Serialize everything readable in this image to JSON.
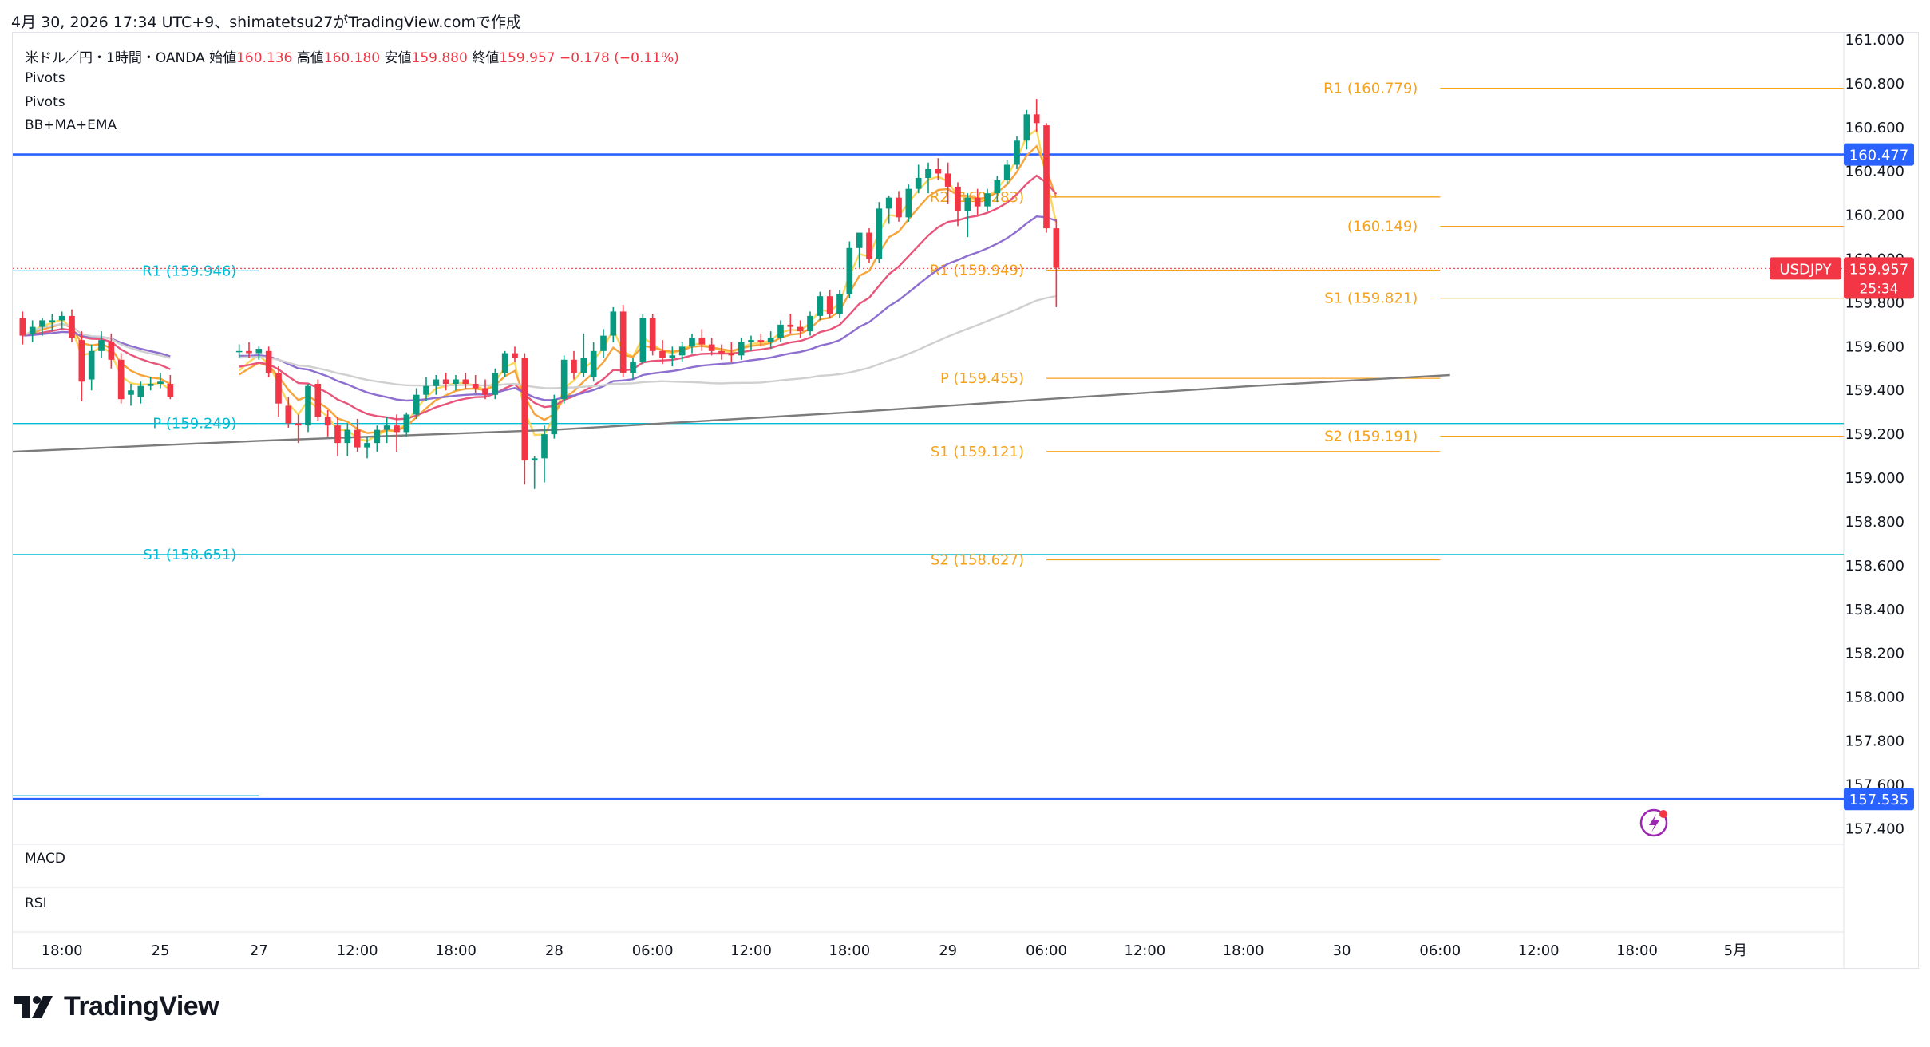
{
  "header": {
    "created_line": "4月 30, 2026 17:34 UTC+9、shimatetsu27がTradingView.comで作成"
  },
  "legend": {
    "symbol": "米ドル／円・1時間・OANDA",
    "open_label": "始値",
    "open": "160.136",
    "high_label": "高値",
    "high": "160.180",
    "low_label": "安値",
    "low": "159.880",
    "close_label": "終値",
    "close": "159.957",
    "change": "−0.178 (−0.11%)",
    "indicators": [
      "Pivots",
      "Pivots",
      "BB+MA+EMA"
    ]
  },
  "panes": {
    "macd": "MACD",
    "rsi": "RSI"
  },
  "brand": {
    "name": "TradingView"
  },
  "colors": {
    "up": "#089981",
    "down": "#f23645",
    "hline": "#2962ff",
    "pivot_cyan": "#00bcd4",
    "pivot_orange": "#f7a21b",
    "ema_yellow": "#fbd75b",
    "ma_orange": "#f7a43b",
    "ma_pink": "#e8557a",
    "ma_purple": "#8e6fcf",
    "ma_lightgray": "#d0d0d0",
    "ma_gray": "#7c7c7c"
  },
  "chart_data": {
    "type": "candlestick",
    "symbol": "USDJPY",
    "last_price": "159.957",
    "countdown": "25:34",
    "y_axis": {
      "ylim": [
        157.35,
        161.0
      ],
      "ticks": [
        "161.000",
        "160.800",
        "160.600",
        "160.400",
        "160.200",
        "160.000",
        "159.800",
        "159.600",
        "159.400",
        "159.200",
        "159.000",
        "158.800",
        "158.600",
        "158.400",
        "158.200",
        "158.000",
        "157.800",
        "157.600",
        "157.400"
      ]
    },
    "x_axis": {
      "range": [
        -6,
        180
      ],
      "ticks": [
        {
          "label": "18:00",
          "x": -1
        },
        {
          "label": "25",
          "x": 9
        },
        {
          "label": "27",
          "x": 19
        },
        {
          "label": "12:00",
          "x": 29
        },
        {
          "label": "18:00",
          "x": 39
        },
        {
          "label": "28",
          "x": 49
        },
        {
          "label": "06:00",
          "x": 59
        },
        {
          "label": "12:00",
          "x": 69
        },
        {
          "label": "18:00",
          "x": 79
        },
        {
          "label": "29",
          "x": 89
        },
        {
          "label": "06:00",
          "x": 99
        },
        {
          "label": "12:00",
          "x": 109
        },
        {
          "label": "18:00",
          "x": 119
        },
        {
          "label": "30",
          "x": 129
        },
        {
          "label": "06:00",
          "x": 139
        },
        {
          "label": "12:00",
          "x": 149
        },
        {
          "label": "18:00",
          "x": 159
        },
        {
          "label": "5月",
          "x": 169
        }
      ]
    },
    "horizontal_lines": [
      {
        "price": 160.477,
        "label": "160.477"
      },
      {
        "price": 157.535,
        "label": "157.535"
      }
    ],
    "pivot_levels": [
      {
        "label": "R1 (159.946)",
        "price": 159.946,
        "x0": -6,
        "x1": 19,
        "color": "cyan"
      },
      {
        "label": "P (159.249)",
        "price": 159.249,
        "x0": -6,
        "x1": 19,
        "color": "cyan"
      },
      {
        "label": "S1 (158.651)",
        "price": 158.651,
        "x0": -6,
        "x1": 19,
        "color": "cyan"
      },
      {
        "label": "",
        "price": 157.55,
        "x0": -6,
        "x1": 19,
        "color": "cyan"
      },
      {
        "label": "",
        "price": 159.249,
        "x0": 19,
        "x1": 180,
        "color": "cyan"
      },
      {
        "label": "",
        "price": 158.651,
        "x0": 19,
        "x1": 180,
        "color": "cyan"
      },
      {
        "label": "R2 (160.283)",
        "price": 160.283,
        "x0": 99,
        "x1": 139,
        "color": "orange"
      },
      {
        "label": "R1 (159.949)",
        "price": 159.949,
        "x0": 99,
        "x1": 139,
        "color": "orange"
      },
      {
        "label": "P (159.455)",
        "price": 159.455,
        "x0": 99,
        "x1": 139,
        "color": "orange"
      },
      {
        "label": "S1 (159.121)",
        "price": 159.121,
        "x0": 99,
        "x1": 139,
        "color": "orange"
      },
      {
        "label": "S2 (158.627)",
        "price": 158.627,
        "x0": 99,
        "x1": 139,
        "color": "orange"
      },
      {
        "label": "R1 (160.779)",
        "price": 160.779,
        "x0": 139,
        "x1": 180,
        "color": "orange"
      },
      {
        "label": "(160.149)",
        "price": 160.149,
        "x0": 139,
        "x1": 180,
        "color": "orange"
      },
      {
        "label": "S1 (159.821)",
        "price": 159.821,
        "x0": 139,
        "x1": 180,
        "color": "orange"
      },
      {
        "label": "S2 (159.191)",
        "price": 159.191,
        "x0": 139,
        "x1": 180,
        "color": "orange"
      }
    ],
    "candles": [
      {
        "x": -5,
        "o": 159.73,
        "h": 159.76,
        "l": 159.61,
        "c": 159.65
      },
      {
        "x": -4,
        "o": 159.66,
        "h": 159.72,
        "l": 159.62,
        "c": 159.69
      },
      {
        "x": -3,
        "o": 159.69,
        "h": 159.73,
        "l": 159.65,
        "c": 159.72
      },
      {
        "x": -2,
        "o": 159.71,
        "h": 159.75,
        "l": 159.67,
        "c": 159.72
      },
      {
        "x": -1,
        "o": 159.72,
        "h": 159.76,
        "l": 159.68,
        "c": 159.74
      },
      {
        "x": 0,
        "o": 159.74,
        "h": 159.77,
        "l": 159.62,
        "c": 159.64
      },
      {
        "x": 1,
        "o": 159.63,
        "h": 159.67,
        "l": 159.35,
        "c": 159.44
      },
      {
        "x": 2,
        "o": 159.45,
        "h": 159.61,
        "l": 159.4,
        "c": 159.58
      },
      {
        "x": 3,
        "o": 159.58,
        "h": 159.67,
        "l": 159.55,
        "c": 159.63
      },
      {
        "x": 4,
        "o": 159.62,
        "h": 159.66,
        "l": 159.5,
        "c": 159.54
      },
      {
        "x": 5,
        "o": 159.54,
        "h": 159.57,
        "l": 159.34,
        "c": 159.36
      },
      {
        "x": 6,
        "o": 159.38,
        "h": 159.43,
        "l": 159.33,
        "c": 159.4
      },
      {
        "x": 7,
        "o": 159.37,
        "h": 159.44,
        "l": 159.34,
        "c": 159.42
      },
      {
        "x": 8,
        "o": 159.42,
        "h": 159.46,
        "l": 159.4,
        "c": 159.43
      },
      {
        "x": 9,
        "o": 159.43,
        "h": 159.48,
        "l": 159.41,
        "c": 159.44
      },
      {
        "x": 10,
        "o": 159.43,
        "h": 159.47,
        "l": 159.36,
        "c": 159.37
      },
      {
        "x": 17,
        "o": 159.58,
        "h": 159.61,
        "l": 159.55,
        "c": 159.58
      },
      {
        "x": 18,
        "o": 159.58,
        "h": 159.62,
        "l": 159.55,
        "c": 159.57
      },
      {
        "x": 19,
        "o": 159.57,
        "h": 159.6,
        "l": 159.54,
        "c": 159.59
      },
      {
        "x": 20,
        "o": 159.58,
        "h": 159.6,
        "l": 159.46,
        "c": 159.48
      },
      {
        "x": 21,
        "o": 159.48,
        "h": 159.51,
        "l": 159.28,
        "c": 159.34
      },
      {
        "x": 22,
        "o": 159.33,
        "h": 159.37,
        "l": 159.23,
        "c": 159.25
      },
      {
        "x": 23,
        "o": 159.25,
        "h": 159.29,
        "l": 159.16,
        "c": 159.24
      },
      {
        "x": 24,
        "o": 159.24,
        "h": 159.43,
        "l": 159.21,
        "c": 159.42
      },
      {
        "x": 25,
        "o": 159.43,
        "h": 159.45,
        "l": 159.26,
        "c": 159.28
      },
      {
        "x": 26,
        "o": 159.28,
        "h": 159.31,
        "l": 159.19,
        "c": 159.24
      },
      {
        "x": 27,
        "o": 159.24,
        "h": 159.28,
        "l": 159.1,
        "c": 159.16
      },
      {
        "x": 28,
        "o": 159.16,
        "h": 159.25,
        "l": 159.1,
        "c": 159.22
      },
      {
        "x": 29,
        "o": 159.22,
        "h": 159.27,
        "l": 159.12,
        "c": 159.14
      },
      {
        "x": 30,
        "o": 159.14,
        "h": 159.19,
        "l": 159.09,
        "c": 159.16
      },
      {
        "x": 31,
        "o": 159.16,
        "h": 159.24,
        "l": 159.12,
        "c": 159.22
      },
      {
        "x": 32,
        "o": 159.22,
        "h": 159.28,
        "l": 159.16,
        "c": 159.24
      },
      {
        "x": 33,
        "o": 159.24,
        "h": 159.29,
        "l": 159.12,
        "c": 159.21
      },
      {
        "x": 34,
        "o": 159.21,
        "h": 159.3,
        "l": 159.19,
        "c": 159.29
      },
      {
        "x": 35,
        "o": 159.29,
        "h": 159.41,
        "l": 159.27,
        "c": 159.38
      },
      {
        "x": 36,
        "o": 159.38,
        "h": 159.46,
        "l": 159.35,
        "c": 159.42
      },
      {
        "x": 37,
        "o": 159.42,
        "h": 159.47,
        "l": 159.38,
        "c": 159.45
      },
      {
        "x": 38,
        "o": 159.45,
        "h": 159.48,
        "l": 159.4,
        "c": 159.43
      },
      {
        "x": 39,
        "o": 159.43,
        "h": 159.47,
        "l": 159.4,
        "c": 159.45
      },
      {
        "x": 40,
        "o": 159.45,
        "h": 159.48,
        "l": 159.41,
        "c": 159.43
      },
      {
        "x": 41,
        "o": 159.43,
        "h": 159.47,
        "l": 159.39,
        "c": 159.41
      },
      {
        "x": 42,
        "o": 159.41,
        "h": 159.45,
        "l": 159.36,
        "c": 159.38
      },
      {
        "x": 43,
        "o": 159.38,
        "h": 159.5,
        "l": 159.36,
        "c": 159.48
      },
      {
        "x": 44,
        "o": 159.48,
        "h": 159.58,
        "l": 159.46,
        "c": 159.57
      },
      {
        "x": 45,
        "o": 159.57,
        "h": 159.6,
        "l": 159.53,
        "c": 159.55
      },
      {
        "x": 46,
        "o": 159.55,
        "h": 159.57,
        "l": 158.97,
        "c": 159.08
      },
      {
        "x": 47,
        "o": 159.08,
        "h": 159.1,
        "l": 158.95,
        "c": 159.09
      },
      {
        "x": 48,
        "o": 159.09,
        "h": 159.24,
        "l": 158.98,
        "c": 159.2
      },
      {
        "x": 49,
        "o": 159.2,
        "h": 159.38,
        "l": 159.18,
        "c": 159.36
      },
      {
        "x": 50,
        "o": 159.36,
        "h": 159.56,
        "l": 159.34,
        "c": 159.54
      },
      {
        "x": 51,
        "o": 159.54,
        "h": 159.58,
        "l": 159.45,
        "c": 159.48
      },
      {
        "x": 52,
        "o": 159.48,
        "h": 159.66,
        "l": 159.46,
        "c": 159.55
      },
      {
        "x": 53,
        "o": 159.46,
        "h": 159.62,
        "l": 159.44,
        "c": 159.58
      },
      {
        "x": 54,
        "o": 159.58,
        "h": 159.68,
        "l": 159.55,
        "c": 159.65
      },
      {
        "x": 55,
        "o": 159.65,
        "h": 159.78,
        "l": 159.62,
        "c": 159.76
      },
      {
        "x": 56,
        "o": 159.76,
        "h": 159.79,
        "l": 159.46,
        "c": 159.48
      },
      {
        "x": 57,
        "o": 159.48,
        "h": 159.55,
        "l": 159.45,
        "c": 159.53
      },
      {
        "x": 58,
        "o": 159.53,
        "h": 159.75,
        "l": 159.52,
        "c": 159.73
      },
      {
        "x": 59,
        "o": 159.73,
        "h": 159.75,
        "l": 159.56,
        "c": 159.58
      },
      {
        "x": 60,
        "o": 159.58,
        "h": 159.63,
        "l": 159.52,
        "c": 159.55
      },
      {
        "x": 61,
        "o": 159.55,
        "h": 159.6,
        "l": 159.51,
        "c": 159.56
      },
      {
        "x": 62,
        "o": 159.56,
        "h": 159.62,
        "l": 159.53,
        "c": 159.6
      },
      {
        "x": 63,
        "o": 159.6,
        "h": 159.66,
        "l": 159.57,
        "c": 159.64
      },
      {
        "x": 64,
        "o": 159.64,
        "h": 159.68,
        "l": 159.58,
        "c": 159.61
      },
      {
        "x": 65,
        "o": 159.61,
        "h": 159.64,
        "l": 159.56,
        "c": 159.58
      },
      {
        "x": 66,
        "o": 159.58,
        "h": 159.61,
        "l": 159.54,
        "c": 159.57
      },
      {
        "x": 67,
        "o": 159.57,
        "h": 159.62,
        "l": 159.53,
        "c": 159.56
      },
      {
        "x": 68,
        "o": 159.56,
        "h": 159.64,
        "l": 159.54,
        "c": 159.62
      },
      {
        "x": 69,
        "o": 159.62,
        "h": 159.65,
        "l": 159.58,
        "c": 159.63
      },
      {
        "x": 70,
        "o": 159.63,
        "h": 159.66,
        "l": 159.6,
        "c": 159.62
      },
      {
        "x": 71,
        "o": 159.62,
        "h": 159.67,
        "l": 159.59,
        "c": 159.64
      },
      {
        "x": 72,
        "o": 159.64,
        "h": 159.72,
        "l": 159.62,
        "c": 159.7
      },
      {
        "x": 73,
        "o": 159.7,
        "h": 159.75,
        "l": 159.66,
        "c": 159.69
      },
      {
        "x": 74,
        "o": 159.69,
        "h": 159.72,
        "l": 159.64,
        "c": 159.67
      },
      {
        "x": 75,
        "o": 159.67,
        "h": 159.76,
        "l": 159.65,
        "c": 159.74
      },
      {
        "x": 76,
        "o": 159.74,
        "h": 159.85,
        "l": 159.72,
        "c": 159.83
      },
      {
        "x": 77,
        "o": 159.83,
        "h": 159.86,
        "l": 159.73,
        "c": 159.75
      },
      {
        "x": 78,
        "o": 159.75,
        "h": 159.86,
        "l": 159.73,
        "c": 159.84
      },
      {
        "x": 79,
        "o": 159.84,
        "h": 160.08,
        "l": 159.82,
        "c": 160.05
      },
      {
        "x": 80,
        "o": 160.05,
        "h": 160.12,
        "l": 159.96,
        "c": 160.12
      },
      {
        "x": 81,
        "o": 160.12,
        "h": 160.14,
        "l": 159.98,
        "c": 160.0
      },
      {
        "x": 82,
        "o": 160.0,
        "h": 160.26,
        "l": 159.98,
        "c": 160.23
      },
      {
        "x": 83,
        "o": 160.23,
        "h": 160.29,
        "l": 160.16,
        "c": 160.28
      },
      {
        "x": 84,
        "o": 160.28,
        "h": 160.31,
        "l": 160.17,
        "c": 160.19
      },
      {
        "x": 85,
        "o": 160.19,
        "h": 160.34,
        "l": 160.17,
        "c": 160.32
      },
      {
        "x": 86,
        "o": 160.32,
        "h": 160.43,
        "l": 160.3,
        "c": 160.37
      },
      {
        "x": 87,
        "o": 160.37,
        "h": 160.44,
        "l": 160.3,
        "c": 160.41
      },
      {
        "x": 88,
        "o": 160.41,
        "h": 160.46,
        "l": 160.36,
        "c": 160.39
      },
      {
        "x": 89,
        "o": 160.39,
        "h": 160.44,
        "l": 160.25,
        "c": 160.33
      },
      {
        "x": 90,
        "o": 160.33,
        "h": 160.35,
        "l": 160.15,
        "c": 160.22
      },
      {
        "x": 91,
        "o": 160.22,
        "h": 160.3,
        "l": 160.1,
        "c": 160.28
      },
      {
        "x": 92,
        "o": 160.28,
        "h": 160.32,
        "l": 160.2,
        "c": 160.24
      },
      {
        "x": 93,
        "o": 160.24,
        "h": 160.32,
        "l": 160.22,
        "c": 160.3
      },
      {
        "x": 94,
        "o": 160.3,
        "h": 160.38,
        "l": 160.26,
        "c": 160.36
      },
      {
        "x": 95,
        "o": 160.36,
        "h": 160.45,
        "l": 160.34,
        "c": 160.43
      },
      {
        "x": 96,
        "o": 160.43,
        "h": 160.56,
        "l": 160.41,
        "c": 160.54
      },
      {
        "x": 97,
        "o": 160.54,
        "h": 160.68,
        "l": 160.5,
        "c": 160.66
      },
      {
        "x": 98,
        "o": 160.66,
        "h": 160.73,
        "l": 160.58,
        "c": 160.62
      },
      {
        "x": 99,
        "o": 160.61,
        "h": 160.62,
        "l": 160.12,
        "c": 160.14
      },
      {
        "x": 100,
        "o": 160.14,
        "h": 160.18,
        "l": 159.78,
        "c": 159.96
      }
    ]
  }
}
